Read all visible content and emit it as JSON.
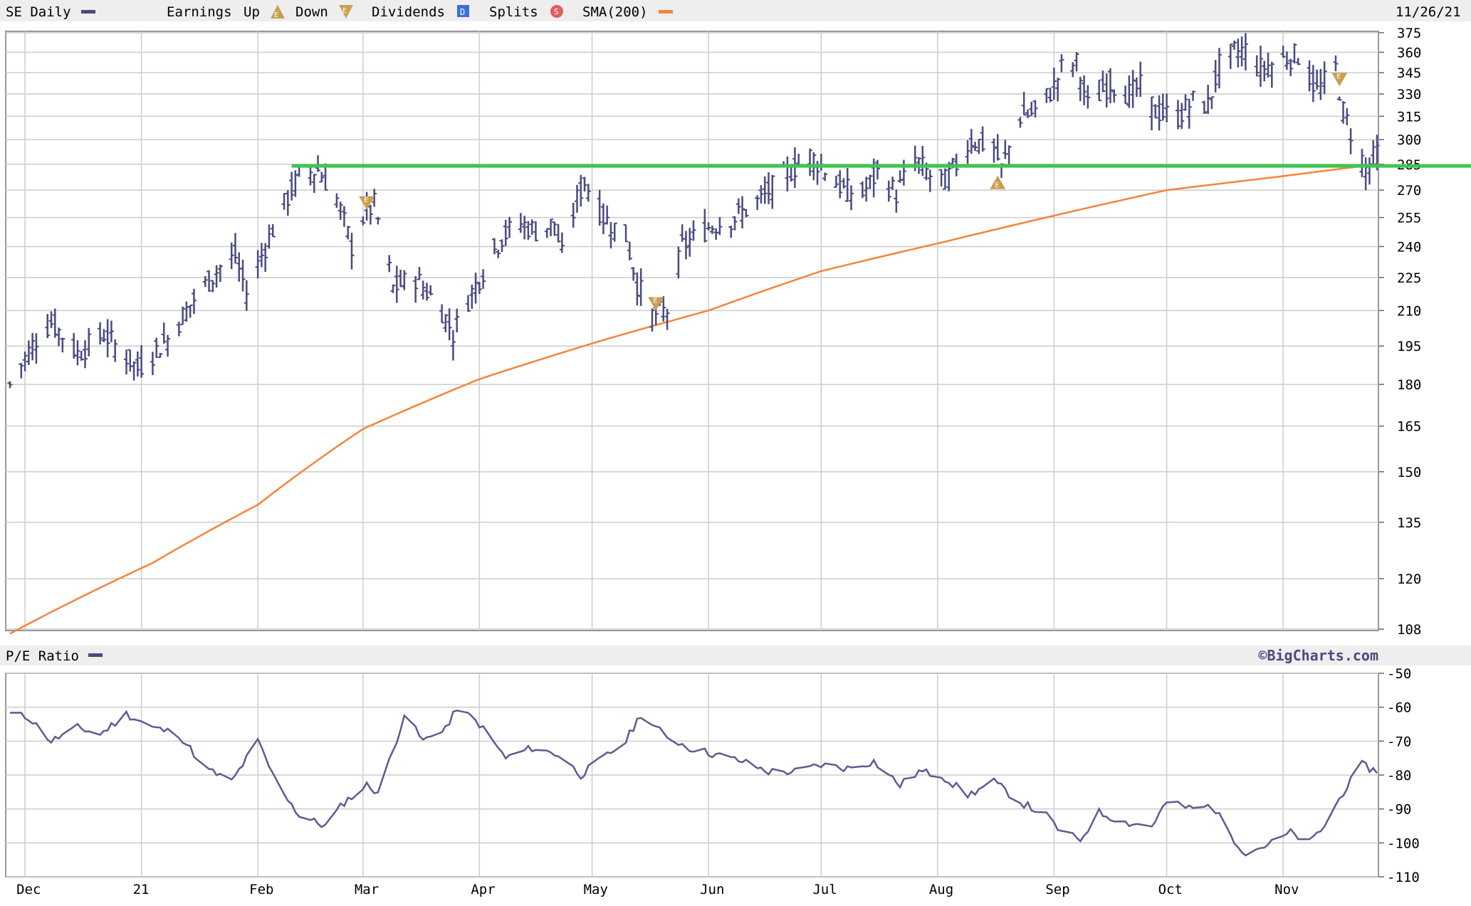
{
  "header": {
    "symbol_label": "SE Daily",
    "earnings_label": "Earnings",
    "up_label": "Up",
    "down_label": "Down",
    "dividends_label": "Dividends",
    "splits_label": "Splits",
    "sma_label": "SMA(200)",
    "date": "11/26/21"
  },
  "icons": {
    "earnings_up_glyph": "E",
    "earnings_down_glyph": "E",
    "dividend_glyph": "D",
    "split_glyph": "S"
  },
  "pe_panel": {
    "label": "P/E Ratio",
    "watermark": "©BigCharts.com"
  },
  "colors": {
    "price_bars": "#4a4a80",
    "sma": "#f5853a",
    "support_line": "#3cc850",
    "earnings_marker": "#c9a050",
    "dividend": "#3b6fdb",
    "split": "#e06060",
    "pe_line": "#5c5c90",
    "grid": "#cccccc",
    "panel_band": "#eeeeee"
  },
  "chart_data": [
    {
      "type": "line",
      "title": "SE Daily",
      "scale": "log",
      "ylim": [
        108,
        375
      ],
      "y_ticks": [
        108,
        120,
        135,
        150,
        165,
        180,
        195,
        210,
        225,
        240,
        255,
        270,
        285,
        300,
        315,
        330,
        345,
        360,
        375
      ],
      "x_ticks": [
        "Dec",
        "21",
        "Feb",
        "Mar",
        "Apr",
        "May",
        "Jun",
        "Jul",
        "Aug",
        "Sep",
        "Oct",
        "Nov"
      ],
      "grid": true,
      "legend": "top-left",
      "x_range": [
        "2020-11-27",
        "2021-11-26"
      ],
      "price_keypoints": [
        [
          "2020-11-27",
          180
        ],
        [
          "2020-12-04",
          198
        ],
        [
          "2020-12-08",
          205
        ],
        [
          "2020-12-15",
          192
        ],
        [
          "2020-12-22",
          200
        ],
        [
          "2020-12-31",
          186
        ],
        [
          "2021-01-08",
          198
        ],
        [
          "2021-01-15",
          215
        ],
        [
          "2021-01-22",
          230
        ],
        [
          "2021-01-26",
          235
        ],
        [
          "2021-01-29",
          218
        ],
        [
          "2021-02-03",
          240
        ],
        [
          "2021-02-08",
          262
        ],
        [
          "2021-02-12",
          278
        ],
        [
          "2021-02-17",
          282
        ],
        [
          "2021-02-22",
          265
        ],
        [
          "2021-02-26",
          240
        ],
        [
          "2021-03-01",
          255
        ],
        [
          "2021-03-04",
          262
        ],
        [
          "2021-03-09",
          220
        ],
        [
          "2021-03-15",
          225
        ],
        [
          "2021-03-22",
          210
        ],
        [
          "2021-03-25",
          200
        ],
        [
          "2021-03-29",
          215
        ],
        [
          "2021-04-01",
          225
        ],
        [
          "2021-04-07",
          245
        ],
        [
          "2021-04-12",
          252
        ],
        [
          "2021-04-16",
          248
        ],
        [
          "2021-04-21",
          252
        ],
        [
          "2021-04-23",
          235
        ],
        [
          "2021-04-27",
          265
        ],
        [
          "2021-04-29",
          275
        ],
        [
          "2021-05-04",
          255
        ],
        [
          "2021-05-10",
          245
        ],
        [
          "2021-05-13",
          222
        ],
        [
          "2021-05-17",
          208
        ],
        [
          "2021-05-21",
          210
        ],
        [
          "2021-05-25",
          240
        ],
        [
          "2021-06-01",
          250
        ],
        [
          "2021-06-08",
          255
        ],
        [
          "2021-06-15",
          265
        ],
        [
          "2021-06-22",
          280
        ],
        [
          "2021-06-28",
          290
        ],
        [
          "2021-07-02",
          282
        ],
        [
          "2021-07-07",
          270
        ],
        [
          "2021-07-12",
          268
        ],
        [
          "2021-07-16",
          280
        ],
        [
          "2021-07-21",
          268
        ],
        [
          "2021-07-26",
          288
        ],
        [
          "2021-07-30",
          278
        ],
        [
          "2021-08-03",
          275
        ],
        [
          "2021-08-06",
          285
        ],
        [
          "2021-08-10",
          300
        ],
        [
          "2021-08-16",
          295
        ],
        [
          "2021-08-18",
          282
        ],
        [
          "2021-08-23",
          315
        ],
        [
          "2021-08-27",
          318
        ],
        [
          "2021-09-01",
          335
        ],
        [
          "2021-09-03",
          348
        ],
        [
          "2021-09-07",
          352
        ],
        [
          "2021-09-10",
          322
        ],
        [
          "2021-09-16",
          338
        ],
        [
          "2021-09-21",
          330
        ],
        [
          "2021-09-24",
          335
        ],
        [
          "2021-09-28",
          318
        ],
        [
          "2021-10-04",
          315
        ],
        [
          "2021-10-08",
          325
        ],
        [
          "2021-10-12",
          322
        ],
        [
          "2021-10-15",
          350
        ],
        [
          "2021-10-19",
          360
        ],
        [
          "2021-10-22",
          362
        ],
        [
          "2021-10-26",
          348
        ],
        [
          "2021-11-01",
          355
        ],
        [
          "2021-11-05",
          358
        ],
        [
          "2021-11-10",
          332
        ],
        [
          "2021-11-15",
          348
        ],
        [
          "2021-11-17",
          318
        ],
        [
          "2021-11-19",
          305
        ],
        [
          "2021-11-23",
          282
        ],
        [
          "2021-11-26",
          292
        ]
      ],
      "series": [
        {
          "name": "SMA(200)",
          "keypoints": [
            [
              "2020-11-27",
              107
            ],
            [
              "2021-01-04",
              124
            ],
            [
              "2021-02-01",
              140
            ],
            [
              "2021-03-01",
              164
            ],
            [
              "2021-04-01",
              182
            ],
            [
              "2021-05-03",
              197
            ],
            [
              "2021-06-01",
              210
            ],
            [
              "2021-07-01",
              228
            ],
            [
              "2021-08-02",
              242
            ],
            [
              "2021-09-01",
              256
            ],
            [
              "2021-10-01",
              270
            ],
            [
              "2021-11-01",
              278
            ],
            [
              "2021-11-26",
              285
            ]
          ]
        },
        {
          "name": "support",
          "value": 284,
          "from": "2021-02-10",
          "to": "2021-11-26"
        }
      ],
      "earnings_markers": [
        {
          "date": "2021-03-02",
          "direction": "down"
        },
        {
          "date": "2021-05-18",
          "direction": "down"
        },
        {
          "date": "2021-08-17",
          "direction": "up"
        },
        {
          "date": "2021-11-16",
          "direction": "down"
        }
      ]
    },
    {
      "type": "line",
      "title": "P/E Ratio",
      "ylim": [
        -110,
        -50
      ],
      "y_ticks": [
        -50,
        -60,
        -70,
        -80,
        -90,
        -100,
        -110
      ],
      "grid": true,
      "x_range": [
        "2020-11-27",
        "2021-11-26"
      ],
      "keypoints": [
        [
          "2020-11-27",
          -62
        ],
        [
          "2020-12-02",
          -63
        ],
        [
          "2020-12-08",
          -70
        ],
        [
          "2020-12-15",
          -66
        ],
        [
          "2020-12-21",
          -68
        ],
        [
          "2020-12-28",
          -62
        ],
        [
          "2021-01-04",
          -66
        ],
        [
          "2021-01-11",
          -68
        ],
        [
          "2021-01-18",
          -78
        ],
        [
          "2021-01-25",
          -82
        ],
        [
          "2021-02-01",
          -70
        ],
        [
          "2021-02-05",
          -80
        ],
        [
          "2021-02-12",
          -92
        ],
        [
          "2021-02-19",
          -95
        ],
        [
          "2021-02-24",
          -88
        ],
        [
          "2021-03-02",
          -83
        ],
        [
          "2021-03-05",
          -85
        ],
        [
          "2021-03-09",
          -73
        ],
        [
          "2021-03-12",
          -62
        ],
        [
          "2021-03-17",
          -70
        ],
        [
          "2021-03-24",
          -65
        ],
        [
          "2021-03-26",
          -60
        ],
        [
          "2021-04-01",
          -65
        ],
        [
          "2021-04-08",
          -75
        ],
        [
          "2021-04-15",
          -72
        ],
        [
          "2021-04-22",
          -74
        ],
        [
          "2021-04-28",
          -80
        ],
        [
          "2021-05-04",
          -75
        ],
        [
          "2021-05-10",
          -70
        ],
        [
          "2021-05-14",
          -62
        ],
        [
          "2021-05-20",
          -68
        ],
        [
          "2021-05-27",
          -72
        ],
        [
          "2021-06-03",
          -74
        ],
        [
          "2021-06-10",
          -76
        ],
        [
          "2021-06-17",
          -79
        ],
        [
          "2021-06-24",
          -79
        ],
        [
          "2021-07-01",
          -77
        ],
        [
          "2021-07-08",
          -78
        ],
        [
          "2021-07-15",
          -76
        ],
        [
          "2021-07-22",
          -83
        ],
        [
          "2021-07-27",
          -79
        ],
        [
          "2021-08-02",
          -80
        ],
        [
          "2021-08-09",
          -86
        ],
        [
          "2021-08-16",
          -82
        ],
        [
          "2021-08-23",
          -88
        ],
        [
          "2021-08-30",
          -92
        ],
        [
          "2021-09-03",
          -97
        ],
        [
          "2021-09-08",
          -99
        ],
        [
          "2021-09-13",
          -91
        ],
        [
          "2021-09-20",
          -94
        ],
        [
          "2021-09-27",
          -95
        ],
        [
          "2021-10-01",
          -88
        ],
        [
          "2021-10-08",
          -90
        ],
        [
          "2021-10-13",
          -89
        ],
        [
          "2021-10-19",
          -99
        ],
        [
          "2021-10-22",
          -103
        ],
        [
          "2021-10-29",
          -100
        ],
        [
          "2021-11-03",
          -97
        ],
        [
          "2021-11-08",
          -100
        ],
        [
          "2021-11-12",
          -95
        ],
        [
          "2021-11-17",
          -85
        ],
        [
          "2021-11-22",
          -77
        ],
        [
          "2021-11-26",
          -79
        ]
      ]
    }
  ]
}
